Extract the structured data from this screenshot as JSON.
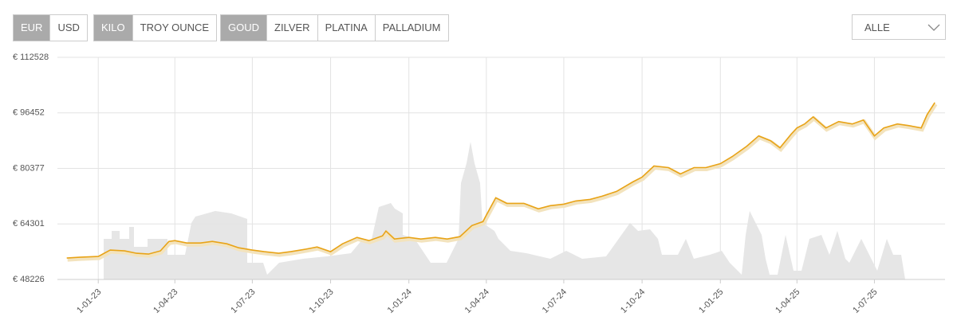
{
  "controls": {
    "currency": [
      "EUR",
      "USD"
    ],
    "unit": [
      "KILO",
      "TROY OUNCE"
    ],
    "metal": [
      "GOUD",
      "ZILVER",
      "PLATINA",
      "PALLADIUM"
    ],
    "period": "ALLE"
  },
  "chart_data": {
    "type": "line",
    "grid": true,
    "x": [
      "2022-11-25",
      "2022-12-10",
      "2023-01-01",
      "2023-01-15",
      "2023-02-01",
      "2023-02-15",
      "2023-03-01",
      "2023-03-15",
      "2023-03-25",
      "2023-04-01",
      "2023-04-15",
      "2023-05-01",
      "2023-05-15",
      "2023-06-01",
      "2023-06-15",
      "2023-07-01",
      "2023-07-15",
      "2023-08-01",
      "2023-08-15",
      "2023-09-01",
      "2023-09-15",
      "2023-10-01",
      "2023-10-15",
      "2023-11-01",
      "2023-11-15",
      "2023-12-01",
      "2023-12-05",
      "2023-12-15",
      "2024-01-01",
      "2024-01-15",
      "2024-02-01",
      "2024-02-15",
      "2024-03-01",
      "2024-03-15",
      "2024-03-28",
      "2024-04-01",
      "2024-04-12",
      "2024-04-25",
      "2024-05-15",
      "2024-06-01",
      "2024-06-15",
      "2024-07-01",
      "2024-07-15",
      "2024-08-01",
      "2024-08-15",
      "2024-09-01",
      "2024-09-20",
      "2024-10-01",
      "2024-10-15",
      "2024-11-01",
      "2024-11-15",
      "2024-12-01",
      "2024-12-15",
      "2025-01-01",
      "2025-01-15",
      "2025-02-01",
      "2025-02-15",
      "2025-03-01",
      "2025-03-12",
      "2025-03-25",
      "2025-04-01",
      "2025-04-10",
      "2025-04-20",
      "2025-05-05",
      "2025-05-20",
      "2025-06-05",
      "2025-06-18",
      "2025-07-01",
      "2025-07-12",
      "2025-07-28",
      "2025-08-10",
      "2025-08-25",
      "2025-09-01",
      "2025-09-10"
    ],
    "series": [
      {
        "color": "#e8a317",
        "values": [
          54425,
          54650,
          54885,
          56720,
          56490,
          55800,
          55570,
          56490,
          59250,
          59480,
          58790,
          58790,
          59250,
          58560,
          57410,
          56720,
          56260,
          55800,
          56260,
          56950,
          57640,
          56260,
          58560,
          60390,
          59480,
          60855,
          62230,
          59940,
          60390,
          59940,
          60390,
          59940,
          60620,
          63840,
          64990,
          66820,
          71870,
          70270,
          70270,
          68660,
          69580,
          70040,
          70960,
          71420,
          72330,
          73710,
          76470,
          77840,
          81060,
          80600,
          78760,
          80600,
          80600,
          81750,
          83810,
          86800,
          89780,
          88400,
          86340,
          90240,
          92080,
          93230,
          95300,
          92080,
          93920,
          93230,
          94380,
          89780,
          92080,
          93230,
          92770,
          92080,
          95990,
          99430
        ]
      }
    ],
    "xlim": [
      "2022-11-14",
      "2025-09-22"
    ],
    "xticks": [
      {
        "value": "2023-01-01",
        "label": "1-01-23"
      },
      {
        "value": "2023-04-01",
        "label": "1-04-23"
      },
      {
        "value": "2023-07-01",
        "label": "1-07-23"
      },
      {
        "value": "2023-10-01",
        "label": "1-10-23"
      },
      {
        "value": "2024-01-01",
        "label": "1-01-24"
      },
      {
        "value": "2024-04-01",
        "label": "1-04-24"
      },
      {
        "value": "2024-07-01",
        "label": "1-07-24"
      },
      {
        "value": "2024-10-01",
        "label": "1-10-24"
      },
      {
        "value": "2025-01-01",
        "label": "1-01-25"
      },
      {
        "value": "2025-04-01",
        "label": "1-04-25"
      },
      {
        "value": "2025-07-01",
        "label": "1-07-25"
      }
    ],
    "ylim": [
      48226,
      112528
    ],
    "yticks": [
      {
        "value": 48226,
        "label": "€ 48226"
      },
      {
        "value": 64301,
        "label": "€ 64301"
      },
      {
        "value": 80377,
        "label": "€ 80377"
      },
      {
        "value": 96452,
        "label": "€ 96452"
      },
      {
        "value": 112528,
        "label": "€ 112528"
      }
    ]
  }
}
